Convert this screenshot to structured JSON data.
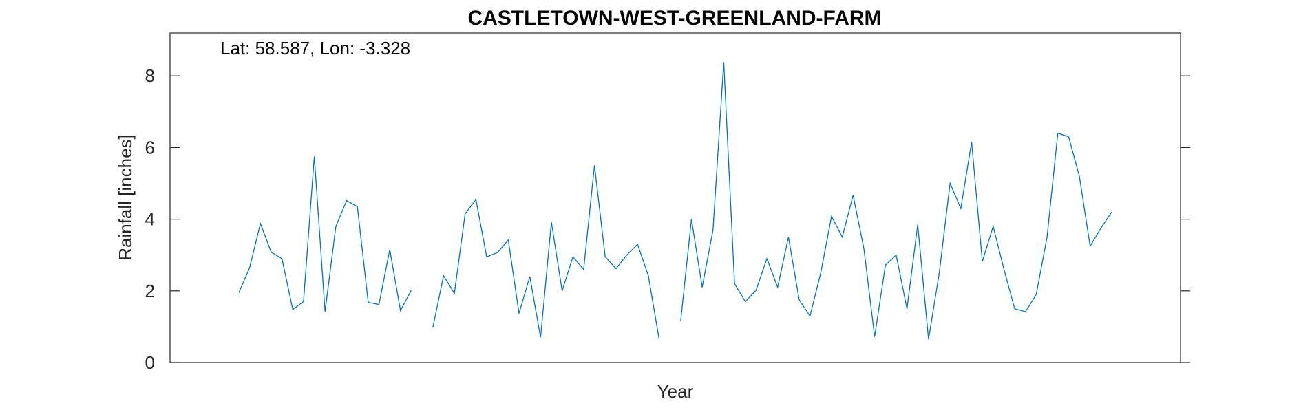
{
  "chart_data": {
    "type": "line",
    "title": "CASTLETOWN-WEST-GREENLAND-FARM",
    "xlabel": "Year",
    "ylabel": "Rainfall [inches]",
    "annotation": "Lat: 58.587, Lon: -3.328",
    "ylim": [
      0,
      9.2
    ],
    "yticks": [
      0,
      2,
      4,
      6,
      8
    ],
    "grid": false,
    "line_color": "#0072BD",
    "series": [
      {
        "values": [
          1.95,
          2.65,
          3.88,
          3.08,
          2.9,
          1.48,
          1.7,
          5.75,
          1.42,
          3.8,
          4.52,
          4.35,
          1.68,
          1.62,
          3.15,
          1.45,
          2.02,
          null,
          0.98,
          2.42,
          1.93,
          4.15,
          4.55,
          2.95,
          3.07,
          3.42,
          1.37,
          2.4,
          0.7,
          3.92,
          2.0,
          2.95,
          2.6,
          5.5,
          2.95,
          2.62,
          3.0,
          3.3,
          2.42,
          0.65,
          null,
          1.15,
          4.0,
          2.1,
          3.7,
          8.38,
          2.2,
          1.7,
          2.02,
          2.9,
          2.1,
          3.5,
          1.75,
          1.3,
          2.5,
          4.08,
          3.5,
          4.67,
          3.18,
          0.72,
          2.72,
          3.0,
          1.5,
          3.85,
          0.65,
          2.5,
          5.0,
          4.3,
          6.15,
          2.82,
          3.8,
          2.6,
          1.5,
          1.42,
          1.9,
          3.5,
          6.4,
          6.3,
          5.2,
          3.25,
          3.75,
          4.2
        ]
      }
    ]
  }
}
